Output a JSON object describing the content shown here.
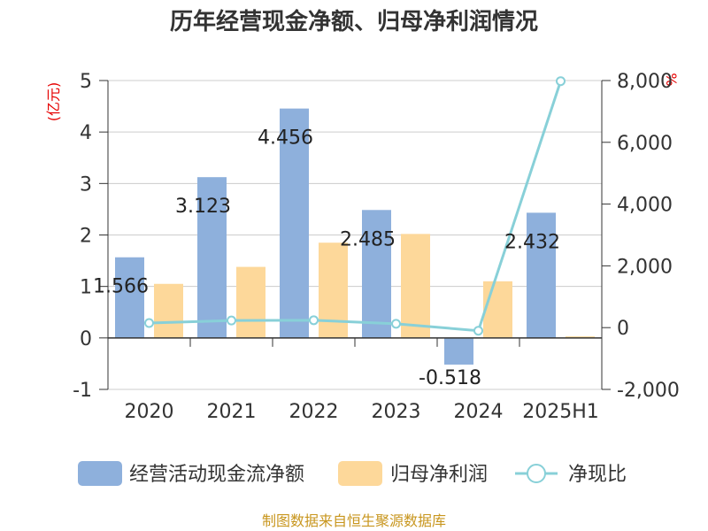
{
  "title": "历年经营现金净额、归母净利润情况",
  "left_axis_unit": "(亿元)",
  "right_axis_unit": "%",
  "source": "制图数据来自恒生聚源数据库",
  "chart_data": {
    "type": "bar",
    "categories": [
      "2020",
      "2021",
      "2022",
      "2023",
      "2024",
      "2025H1"
    ],
    "series": [
      {
        "name": "经营活动现金流净额",
        "type": "bar",
        "axis": "left",
        "color": "#8eb0dc",
        "values": [
          1.566,
          3.123,
          4.456,
          2.485,
          -0.518,
          2.432
        ],
        "labels": [
          "1.566",
          "3.123",
          "4.456",
          "2.485",
          "-0.518",
          "2.432"
        ]
      },
      {
        "name": "归母净利润",
        "type": "bar",
        "axis": "left",
        "color": "#fdd89a",
        "values": [
          1.05,
          1.38,
          1.85,
          2.02,
          1.1,
          0.03
        ]
      },
      {
        "name": "净现比",
        "type": "line",
        "axis": "right",
        "color": "#88d0d8",
        "values": [
          150,
          230,
          240,
          125,
          -100,
          7980
        ]
      }
    ],
    "left_axis": {
      "ylim": [
        -1,
        5
      ],
      "ticks": [
        "-1",
        "0",
        "1",
        "2",
        "3",
        "4",
        "5"
      ]
    },
    "right_axis": {
      "ylim": [
        -2000,
        8000
      ],
      "ticks": [
        "-2,000",
        "0",
        "2,000",
        "4,000",
        "6,000",
        "8,000"
      ]
    },
    "grid": true,
    "legend_position": "bottom"
  }
}
